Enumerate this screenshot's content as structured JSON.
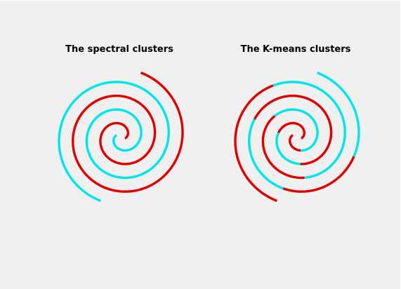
{
  "window": {
    "background": "#f0f0f0"
  },
  "chart_data": [
    {
      "type": "scatter",
      "title": "The spectral clusters",
      "axes_visible": false,
      "grid": false,
      "series": [
        {
          "cluster": 1,
          "color": "#00e5ee",
          "description_ref": "arm-A outer + arm-A inner"
        },
        {
          "cluster": 2,
          "color": "#e00000",
          "description_ref": "arm-B (middle spiral)"
        }
      ],
      "arms": [
        {
          "arm": "A",
          "theta_start": 1.0,
          "theta_end": 15.2,
          "color_runs": [
            {
              "from": 1.0,
              "to": 15.2,
              "cluster": 1
            }
          ]
        },
        {
          "arm": "B",
          "theta_start": 1.0,
          "theta_end": 15.2,
          "color_runs": [
            {
              "from": 1.0,
              "to": 15.2,
              "cluster": 2
            }
          ]
        }
      ]
    },
    {
      "type": "scatter",
      "title": "The K-means clusters",
      "axes_visible": false,
      "grid": false,
      "series": [
        {
          "cluster": 1,
          "color": "#00e5ee"
        },
        {
          "cluster": 2,
          "color": "#e00000"
        }
      ],
      "arms": [
        {
          "arm": "A",
          "theta_start": 1.0,
          "theta_end": 15.2,
          "color_runs": [
            {
              "from": 1.0,
              "to": 3.2,
              "cluster": 2
            },
            {
              "from": 3.2,
              "to": 6.9,
              "cluster": 1
            },
            {
              "from": 6.9,
              "to": 9.4,
              "cluster": 2
            },
            {
              "from": 9.4,
              "to": 12.8,
              "cluster": 1
            },
            {
              "from": 12.8,
              "to": 15.2,
              "cluster": 2
            }
          ]
        },
        {
          "arm": "B",
          "theta_start": 1.0,
          "theta_end": 15.2,
          "color_runs": [
            {
              "from": 1.0,
              "to": 4.3,
              "cluster": 2
            },
            {
              "from": 4.3,
              "to": 6.2,
              "cluster": 1
            },
            {
              "from": 6.2,
              "to": 10.4,
              "cluster": 2
            },
            {
              "from": 10.4,
              "to": 12.1,
              "cluster": 1
            },
            {
              "from": 12.1,
              "to": 13.6,
              "cluster": 2
            },
            {
              "from": 13.6,
              "to": 15.2,
              "cluster": 1
            }
          ]
        }
      ]
    }
  ]
}
